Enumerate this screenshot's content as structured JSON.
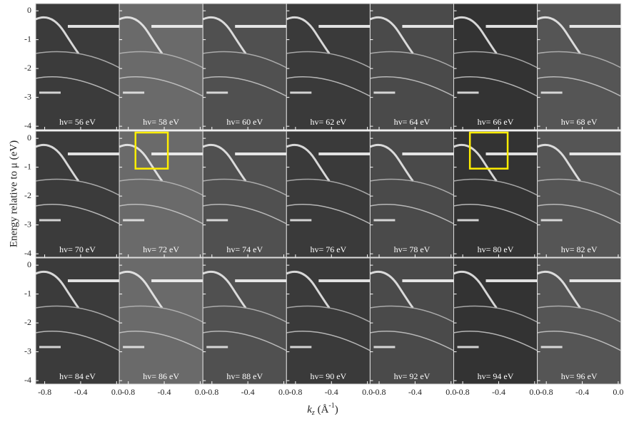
{
  "chart_data": {
    "type": "panels",
    "panels": [
      "hv= 56 eV",
      "hv= 58 eV",
      "hv= 60 eV",
      "hv= 62 eV",
      "hv= 64 eV",
      "hv= 66 eV",
      "hv= 68 eV",
      "hv= 70 eV",
      "hv= 72 eV",
      "hv= 74 eV",
      "hv= 76 eV",
      "hv= 78 eV",
      "hv= 80 eV",
      "hv= 82 eV",
      "hv= 84 eV",
      "hv= 86 eV",
      "hv= 88 eV",
      "hv= 90 eV",
      "hv= 92 eV",
      "hv= 94 eV",
      "hv= 96 eV"
    ],
    "columns": 7,
    "xlim": [
      -0.9,
      0.03
    ],
    "xticks": [
      -0.8,
      -0.4,
      {
        "value": 0,
        "label": "0.0"
      }
    ],
    "ylim": [
      -4.12,
      0.25
    ],
    "yticks": [
      0,
      -1,
      -2,
      -3,
      -4
    ],
    "y_label": "Energy relative to μ (eV)",
    "x_label": {
      "main": "k",
      "sub": "z",
      "open": " (Å",
      "sup": "-1",
      "close": ")"
    },
    "highlight_color": "#ffee00",
    "highlights": [
      {
        "panel": 8,
        "x": [
          -0.72,
          -0.36
        ],
        "y": [
          -1.05,
          0.2
        ]
      },
      {
        "panel": 12,
        "x": [
          -0.72,
          -0.3
        ],
        "y": [
          -1.05,
          0.2
        ]
      }
    ]
  }
}
